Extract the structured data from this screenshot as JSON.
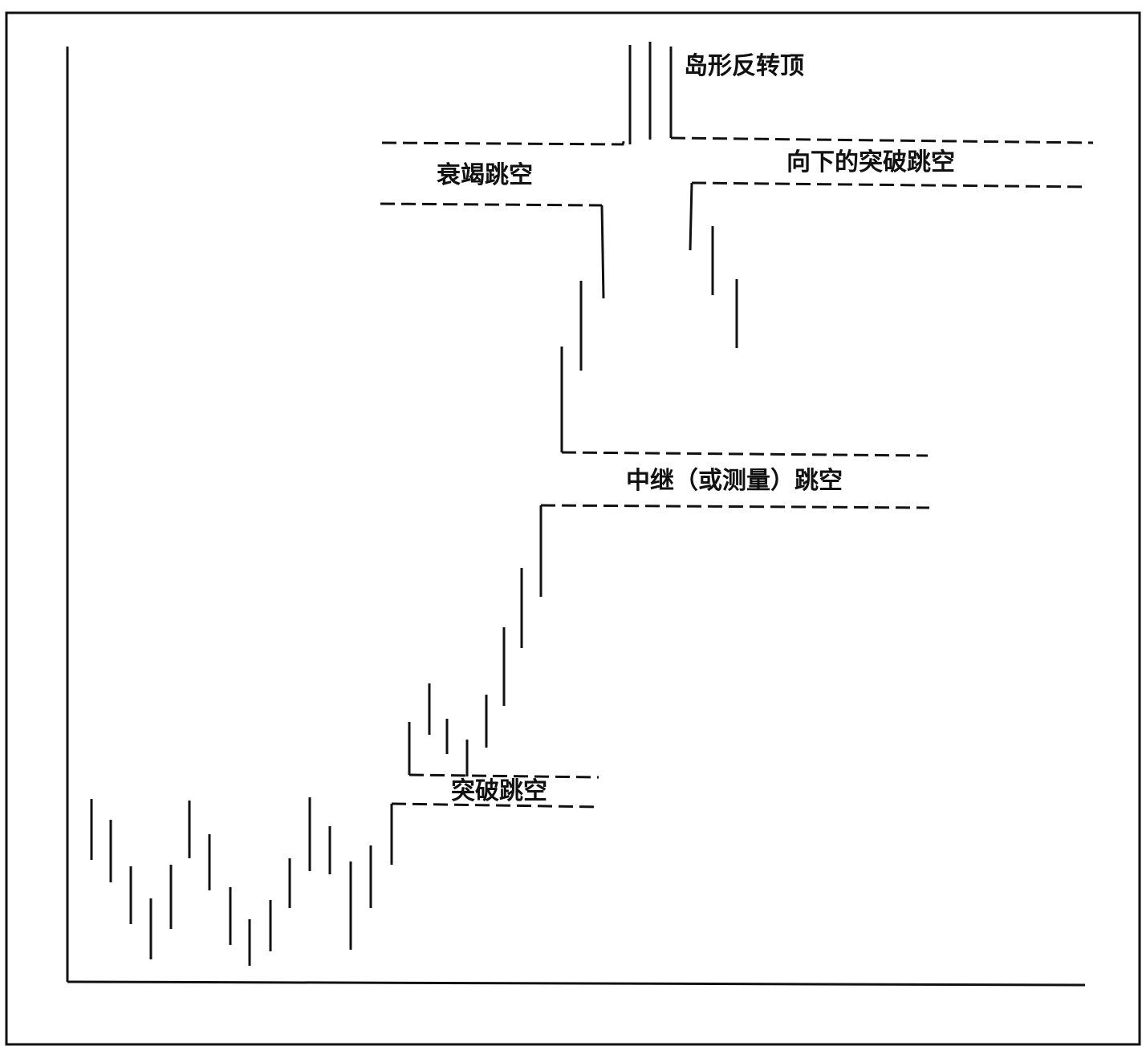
{
  "diagram": {
    "labels": {
      "island_reversal_top": "岛形反转顶",
      "exhaustion_gap": "衰竭跳空",
      "downside_breakaway_gap": "向下的突破跳空",
      "runaway_gap": "中继（或测量）跳空",
      "breakaway_gap": "突破跳空"
    },
    "colors": {
      "ink": "#111111",
      "background": "#ffffff"
    }
  }
}
